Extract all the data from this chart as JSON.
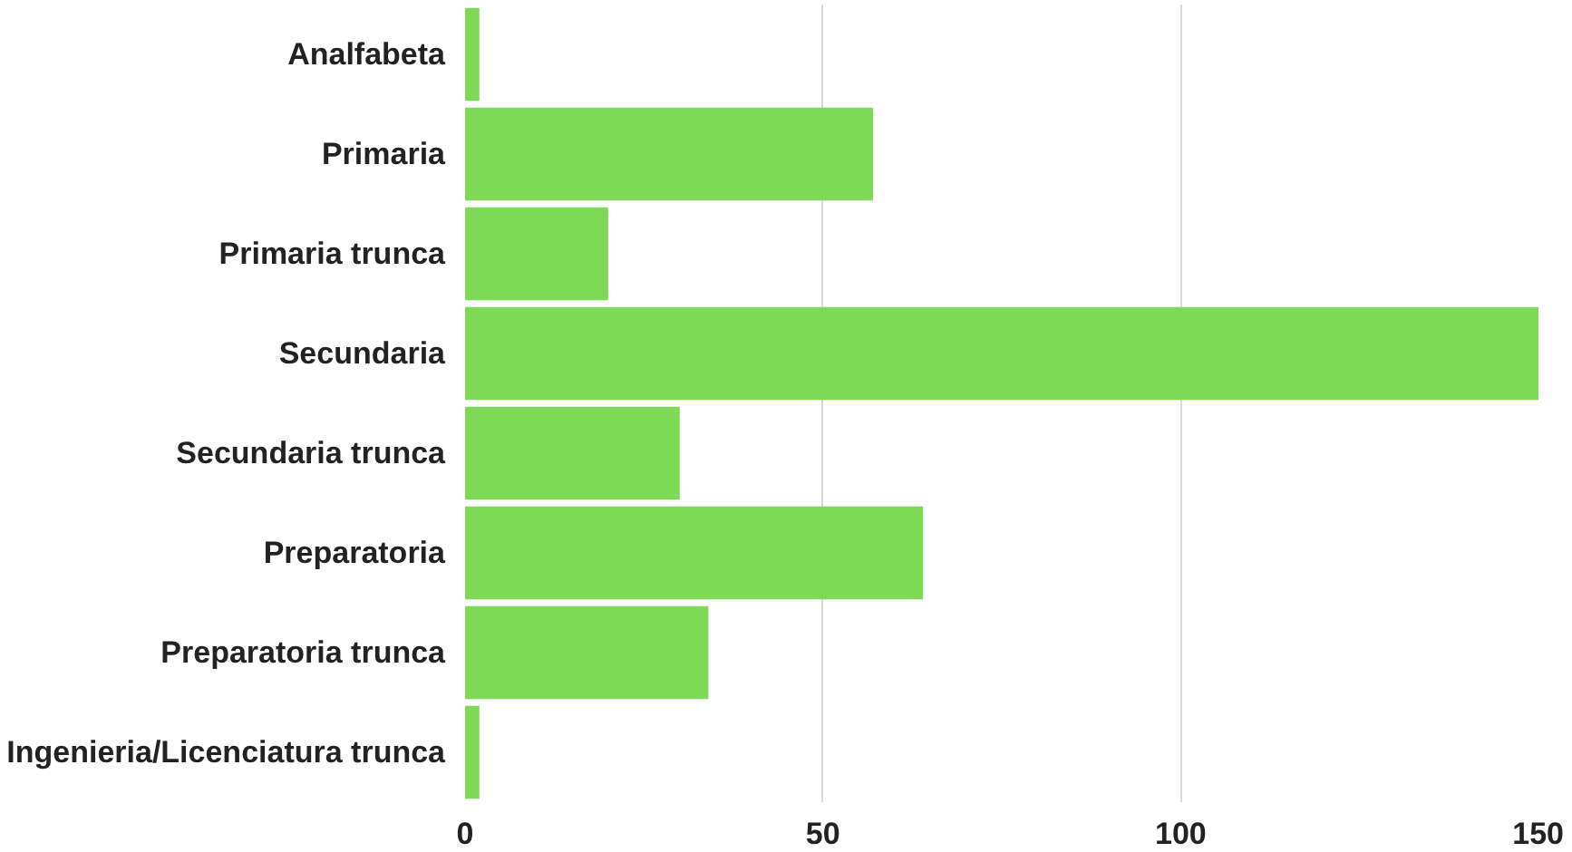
{
  "chart_data": {
    "type": "bar",
    "orientation": "horizontal",
    "categories": [
      "Analfabeta",
      "Primaria",
      "Primaria trunca",
      "Secundaria",
      "Secundaria trunca",
      "Preparatoria",
      "Preparatoria trunca",
      "Ingenieria/Licenciatura trunca"
    ],
    "values": [
      2,
      57,
      20,
      150,
      30,
      64,
      34,
      2
    ],
    "color": "#7ed957",
    "xlim": [
      0,
      150
    ],
    "xticks": [
      0,
      50,
      100,
      150
    ],
    "grid": "x"
  }
}
